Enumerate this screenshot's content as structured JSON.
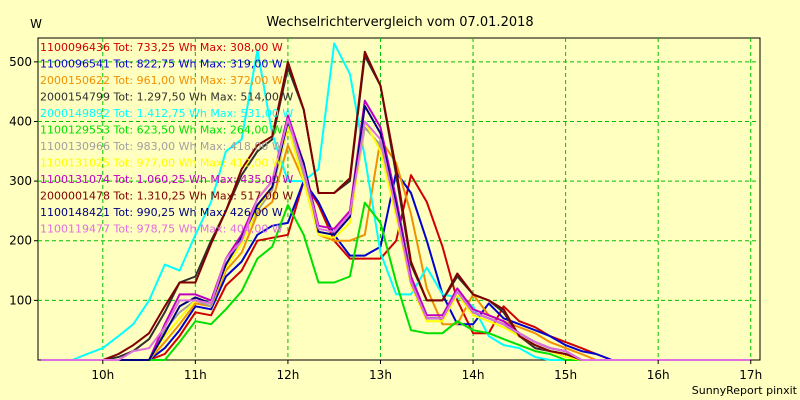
{
  "chart_data": {
    "type": "line",
    "title": "Wechselrichtervergleich vom 07.01.2018",
    "ylabel": "W",
    "xlabel": "",
    "xlim": [
      9.3,
      17.1
    ],
    "ylim": [
      0,
      540
    ],
    "grid": true,
    "legend_position": "top-left",
    "footer": "SunnyReport pinxit",
    "x_ticks": [
      {
        "value": 10,
        "label": "10h"
      },
      {
        "value": 11,
        "label": "11h"
      },
      {
        "value": 12,
        "label": "12h"
      },
      {
        "value": 13,
        "label": "13h"
      },
      {
        "value": 14,
        "label": "14h"
      },
      {
        "value": 15,
        "label": "15h"
      },
      {
        "value": 16,
        "label": "16h"
      },
      {
        "value": 17,
        "label": "17h"
      }
    ],
    "y_ticks": [
      {
        "value": 100,
        "label": "100"
      },
      {
        "value": 200,
        "label": "200"
      },
      {
        "value": 300,
        "label": "300"
      },
      {
        "value": 400,
        "label": "400"
      },
      {
        "value": 500,
        "label": "500"
      }
    ],
    "x": [
      9.33,
      9.5,
      9.67,
      9.83,
      10.0,
      10.17,
      10.33,
      10.5,
      10.67,
      10.83,
      11.0,
      11.17,
      11.33,
      11.5,
      11.67,
      11.83,
      12.0,
      12.17,
      12.33,
      12.5,
      12.67,
      12.83,
      13.0,
      13.17,
      13.33,
      13.5,
      13.67,
      13.83,
      14.0,
      14.17,
      14.33,
      14.5,
      14.67,
      14.83,
      15.0,
      15.17,
      15.33,
      15.5,
      15.67,
      15.83,
      16.0,
      16.17,
      16.33,
      16.5,
      16.67,
      16.83,
      17.0
    ],
    "series": [
      {
        "name": "1100096436",
        "legend": "1100096436 Tot: 733,25 Wh Max: 308,00 W",
        "color": "#d00000",
        "values": [
          0,
          0,
          0,
          0,
          0,
          0,
          0,
          0,
          10,
          40,
          80,
          75,
          125,
          150,
          200,
          205,
          210,
          300,
          260,
          200,
          170,
          170,
          170,
          200,
          310,
          265,
          190,
          100,
          45,
          45,
          90,
          65,
          55,
          40,
          30,
          20,
          10,
          0,
          0,
          0,
          0,
          0,
          0,
          0,
          0,
          0,
          0
        ]
      },
      {
        "name": "1100096541",
        "legend": "1100096541 Tot: 822,75 Wh Max: 319,00 W",
        "color": "#0000d0",
        "values": [
          0,
          0,
          0,
          0,
          0,
          0,
          0,
          0,
          20,
          50,
          90,
          85,
          140,
          165,
          210,
          225,
          230,
          300,
          265,
          210,
          175,
          175,
          190,
          315,
          280,
          200,
          110,
          60,
          60,
          95,
          70,
          60,
          50,
          40,
          25,
          15,
          10,
          0,
          0,
          0,
          0,
          0,
          0,
          0,
          0,
          0,
          0
        ]
      },
      {
        "name": "2000150622",
        "legend": "2000150622 Tot: 961,00 Wh Max: 372,00 W",
        "color": "#f09000",
        "values": [
          0,
          0,
          0,
          0,
          0,
          0,
          0,
          0,
          30,
          60,
          95,
          90,
          150,
          180,
          245,
          265,
          360,
          300,
          210,
          200,
          200,
          210,
          370,
          330,
          245,
          120,
          60,
          60,
          110,
          75,
          65,
          55,
          45,
          30,
          20,
          10,
          0,
          0,
          0,
          0,
          0,
          0,
          0,
          0,
          0,
          0,
          0
        ]
      },
      {
        "name": "2000154799",
        "legend": "2000154799 Tot: 1.297,50 Wh Max: 514,00 W",
        "color": "#303030",
        "values": [
          0,
          0,
          0,
          0,
          0,
          5,
          15,
          35,
          80,
          130,
          140,
          200,
          250,
          310,
          350,
          370,
          490,
          420,
          280,
          280,
          300,
          510,
          460,
          310,
          160,
          100,
          100,
          140,
          110,
          100,
          80,
          40,
          20,
          15,
          10,
          0,
          0,
          0,
          0,
          0,
          0,
          0,
          0,
          0,
          0,
          0,
          0
        ]
      },
      {
        "name": "2000149892",
        "legend": "2000149892 Tot: 1.412,75 Wh Max: 531,00 W",
        "color": "#00ffff",
        "values": [
          0,
          0,
          0,
          10,
          20,
          40,
          60,
          100,
          160,
          150,
          210,
          265,
          350,
          370,
          520,
          380,
          300,
          300,
          320,
          531,
          480,
          340,
          180,
          110,
          110,
          155,
          110,
          105,
          90,
          40,
          25,
          20,
          5,
          0,
          0,
          0,
          0,
          0,
          0,
          0,
          0,
          0,
          0,
          0,
          0,
          0,
          0
        ]
      },
      {
        "name": "1100129553",
        "legend": "1100129553 Tot: 623,50 Wh Max: 264,00 W",
        "color": "#00e000",
        "values": [
          0,
          0,
          0,
          0,
          0,
          0,
          0,
          0,
          0,
          30,
          65,
          60,
          85,
          115,
          170,
          190,
          260,
          210,
          130,
          130,
          140,
          264,
          230,
          130,
          50,
          45,
          45,
          65,
          50,
          45,
          35,
          25,
          15,
          10,
          0,
          0,
          0,
          0,
          0,
          0,
          0,
          0,
          0,
          0,
          0,
          0,
          0
        ]
      },
      {
        "name": "1100130966",
        "legend": "1100130966 Tot: 983,00 Wh Max: 418,00 W",
        "color": "#a0a0a0",
        "values": [
          0,
          0,
          0,
          0,
          0,
          0,
          0,
          0,
          50,
          80,
          100,
          90,
          160,
          200,
          250,
          285,
          390,
          310,
          215,
          210,
          240,
          390,
          360,
          250,
          130,
          70,
          70,
          110,
          80,
          70,
          60,
          40,
          25,
          15,
          10,
          0,
          0,
          0,
          0,
          0,
          0,
          0,
          0,
          0,
          0,
          0,
          0
        ]
      },
      {
        "name": "1100131025",
        "legend": "1100131025 Tot: 977,00 Wh Max: 412,00 W",
        "color": "#ffff00",
        "values": [
          0,
          0,
          0,
          0,
          0,
          0,
          0,
          0,
          40,
          70,
          100,
          95,
          155,
          195,
          255,
          290,
          390,
          300,
          210,
          205,
          230,
          400,
          350,
          240,
          125,
          65,
          65,
          110,
          75,
          65,
          55,
          40,
          25,
          15,
          5,
          0,
          0,
          0,
          0,
          0,
          0,
          0,
          0,
          0,
          0,
          0,
          0
        ]
      },
      {
        "name": "1100131074",
        "legend": "1100131074 Tot: 1.060,25 Wh Max: 435,00 W",
        "color": "#c000c0",
        "values": [
          0,
          0,
          0,
          0,
          0,
          0,
          0,
          0,
          60,
          110,
          110,
          100,
          170,
          210,
          270,
          300,
          410,
          330,
          225,
          220,
          250,
          435,
          390,
          270,
          140,
          75,
          75,
          120,
          85,
          75,
          65,
          45,
          30,
          20,
          15,
          0,
          0,
          0,
          0,
          0,
          0,
          0,
          0,
          0,
          0,
          0,
          0
        ]
      },
      {
        "name": "2000001478",
        "legend": "2000001478 Tot: 1.310,25 Wh Max: 517,00 W",
        "color": "#800000",
        "values": [
          0,
          0,
          0,
          0,
          0,
          10,
          25,
          45,
          90,
          130,
          130,
          195,
          250,
          320,
          360,
          375,
          500,
          420,
          280,
          280,
          305,
          517,
          460,
          320,
          165,
          100,
          100,
          145,
          110,
          100,
          85,
          40,
          25,
          15,
          10,
          0,
          0,
          0,
          0,
          0,
          0,
          0,
          0,
          0,
          0,
          0,
          0
        ]
      },
      {
        "name": "1100148421",
        "legend": "1100148421 Tot: 990,25 Wh Max: 426,00 W",
        "color": "#000080",
        "values": [
          0,
          0,
          0,
          0,
          0,
          0,
          0,
          0,
          45,
          90,
          105,
          95,
          160,
          205,
          260,
          290,
          400,
          330,
          215,
          210,
          240,
          426,
          380,
          260,
          130,
          70,
          70,
          115,
          80,
          70,
          60,
          45,
          30,
          20,
          15,
          0,
          0,
          0,
          0,
          0,
          0,
          0,
          0,
          0,
          0,
          0,
          0
        ]
      },
      {
        "name": "1100119477",
        "legend": "1100119477 Tot: 978,75 Wh Max: 404,00 W",
        "color": "#e070e0",
        "values": [
          0,
          0,
          0,
          0,
          0,
          0,
          15,
          20,
          55,
          100,
          100,
          95,
          170,
          200,
          270,
          300,
          404,
          320,
          220,
          215,
          245,
          400,
          370,
          250,
          130,
          70,
          70,
          115,
          80,
          70,
          60,
          45,
          30,
          20,
          15,
          0,
          0,
          0,
          0,
          0,
          0,
          0,
          0,
          0,
          0,
          0,
          0
        ]
      }
    ]
  }
}
